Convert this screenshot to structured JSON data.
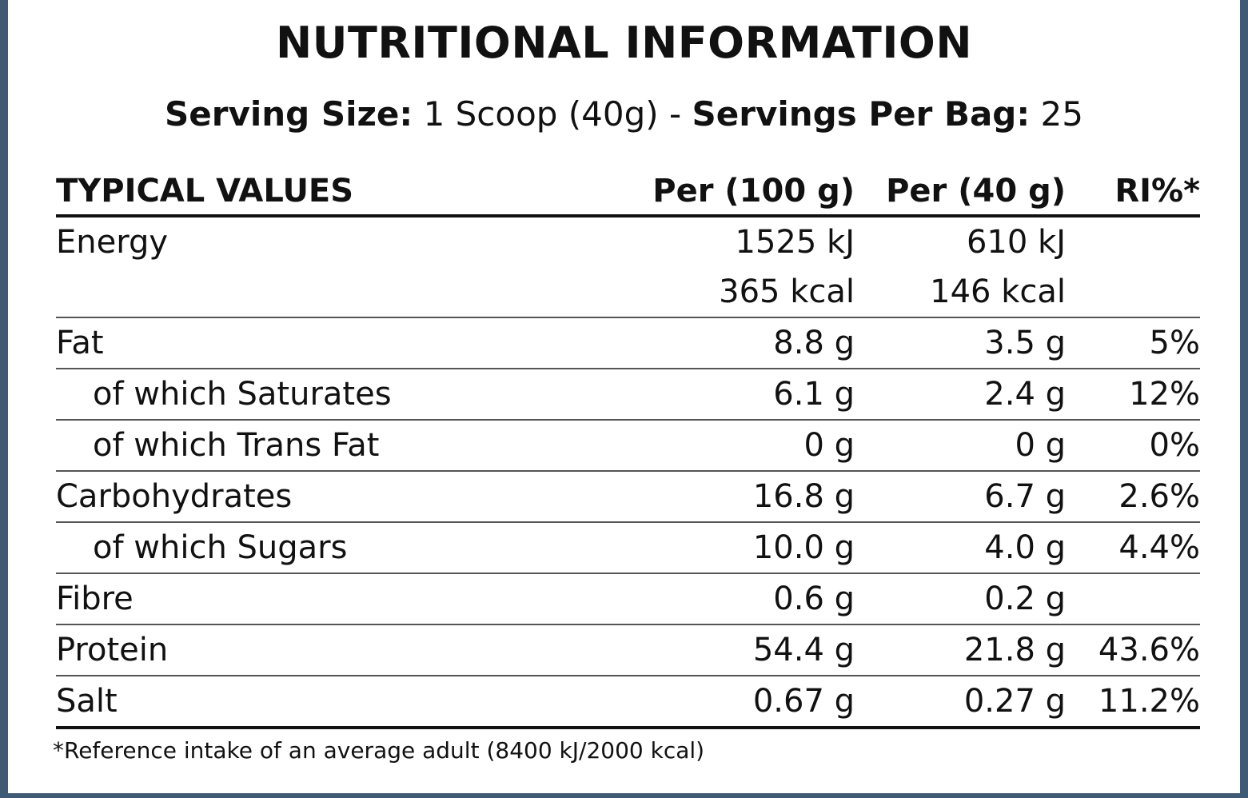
{
  "title": "NUTRITIONAL INFORMATION",
  "serving": {
    "size_label": "Serving Size:",
    "size_value": " 1 Scoop (40g) - ",
    "per_bag_label": "Servings Per Bag:",
    "per_bag_value": " 25"
  },
  "table": {
    "headers": {
      "name": "TYPICAL VALUES",
      "per100": "Per (100 g)",
      "per40": "Per (40 g)",
      "ri": "RI%*"
    },
    "energy": {
      "name": "Energy",
      "per100_kj": "1525 kJ",
      "per40_kj": "610 kJ",
      "per100_kcal": "365 kcal",
      "per40_kcal": "146 kcal"
    },
    "rows": [
      {
        "name": "Fat",
        "per100": "8.8 g",
        "per40": "3.5 g",
        "ri": "5%"
      },
      {
        "name": "of which Saturates",
        "per100": "6.1 g",
        "per40": "2.4 g",
        "ri": "12%"
      },
      {
        "name": "of which Trans Fat",
        "per100": "0 g",
        "per40": "0 g",
        "ri": "0%"
      },
      {
        "name": "Carbohydrates",
        "per100": "16.8 g",
        "per40": "6.7 g",
        "ri": "2.6%"
      },
      {
        "name": "of which Sugars",
        "per100": "10.0 g",
        "per40": "4.0 g",
        "ri": "4.4%"
      },
      {
        "name": "Fibre",
        "per100": "0.6 g",
        "per40": "0.2 g",
        "ri": ""
      },
      {
        "name": "Protein",
        "per100": "54.4 g",
        "per40": "21.8 g",
        "ri": "43.6%"
      },
      {
        "name": "Salt",
        "per100": "0.67 g",
        "per40": "0.27 g",
        "ri": "11.2%"
      }
    ]
  },
  "footnote": "*Reference intake of an average adult (8400 kJ/2000 kcal)"
}
